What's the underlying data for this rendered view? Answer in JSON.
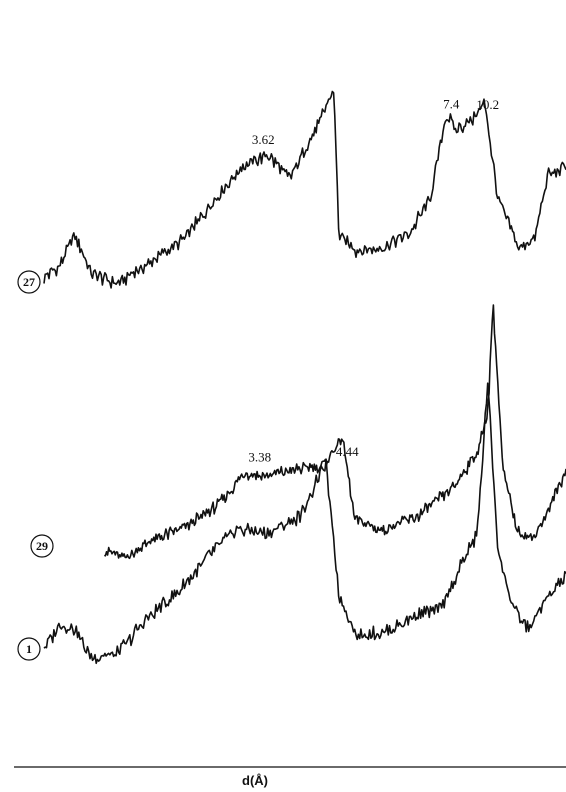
{
  "chart_data": {
    "type": "line",
    "title": "",
    "xlabel": "d(Å)",
    "ylabel": "",
    "grid": false,
    "legend": "none",
    "series": [
      {
        "name": "27",
        "points": [
          [
            0,
            0
          ],
          [
            0.03,
            0.07
          ],
          [
            0.06,
            0.24
          ],
          [
            0.09,
            0.02
          ],
          [
            0.14,
            -0.03
          ],
          [
            0.2,
            0.08
          ],
          [
            0.27,
            0.22
          ],
          [
            0.33,
            0.45
          ],
          [
            0.38,
            0.62
          ],
          [
            0.43,
            0.68
          ],
          [
            0.47,
            0.55
          ],
          [
            0.5,
            0.71
          ],
          [
            0.53,
            0.88
          ],
          [
            0.555,
            1.05
          ],
          [
            0.565,
            0.24
          ],
          [
            0.6,
            0.15
          ],
          [
            0.65,
            0.17
          ],
          [
            0.7,
            0.25
          ],
          [
            0.74,
            0.44
          ],
          [
            0.77,
            0.91
          ],
          [
            0.79,
            0.82
          ],
          [
            0.82,
            0.88
          ],
          [
            0.845,
            0.97
          ],
          [
            0.87,
            0.43
          ],
          [
            0.91,
            0.17
          ],
          [
            0.94,
            0.21
          ],
          [
            0.965,
            0.57
          ],
          [
            1.0,
            0.62
          ]
        ],
        "peak_labels": [
          {
            "x": 0.42,
            "label": "3.62"
          },
          {
            "x": 0.78,
            "label": "7.4"
          },
          {
            "x": 0.85,
            "label": "10.2"
          }
        ]
      },
      {
        "name": "29",
        "points": [
          [
            0.05,
            0
          ],
          [
            0.09,
            -0.05
          ],
          [
            0.15,
            0.06
          ],
          [
            0.22,
            0.15
          ],
          [
            0.28,
            0.27
          ],
          [
            0.34,
            0.48
          ],
          [
            0.38,
            0.46
          ],
          [
            0.44,
            0.5
          ],
          [
            0.5,
            0.53
          ],
          [
            0.54,
            0.7
          ],
          [
            0.565,
            0.2
          ],
          [
            0.62,
            0.12
          ],
          [
            0.7,
            0.22
          ],
          [
            0.77,
            0.4
          ],
          [
            0.82,
            0.62
          ],
          [
            0.84,
            0.9
          ],
          [
            0.85,
            1.55
          ],
          [
            0.87,
            0.5
          ],
          [
            0.9,
            0.12
          ],
          [
            0.93,
            0.07
          ],
          [
            0.96,
            0.22
          ],
          [
            1.0,
            0.5
          ]
        ],
        "peak_labels": [
          {
            "x": 0.37,
            "label": "3.38"
          },
          {
            "x": 0.55,
            "label": "4.44"
          }
        ]
      },
      {
        "name": "1",
        "points": [
          [
            0,
            0
          ],
          [
            0.03,
            0.12
          ],
          [
            0.06,
            0.1
          ],
          [
            0.09,
            -0.05
          ],
          [
            0.14,
            -0.03
          ],
          [
            0.2,
            0.16
          ],
          [
            0.26,
            0.3
          ],
          [
            0.32,
            0.5
          ],
          [
            0.37,
            0.63
          ],
          [
            0.43,
            0.6
          ],
          [
            0.49,
            0.69
          ],
          [
            0.54,
            0.97
          ],
          [
            0.565,
            0.28
          ],
          [
            0.6,
            0.06
          ],
          [
            0.66,
            0.09
          ],
          [
            0.72,
            0.18
          ],
          [
            0.76,
            0.2
          ],
          [
            0.8,
            0.44
          ],
          [
            0.83,
            0.6
          ],
          [
            0.85,
            1.4
          ],
          [
            0.87,
            0.5
          ],
          [
            0.9,
            0.2
          ],
          [
            0.93,
            0.1
          ],
          [
            0.96,
            0.25
          ],
          [
            1.0,
            0.38
          ]
        ],
        "peak_labels": []
      }
    ]
  }
}
